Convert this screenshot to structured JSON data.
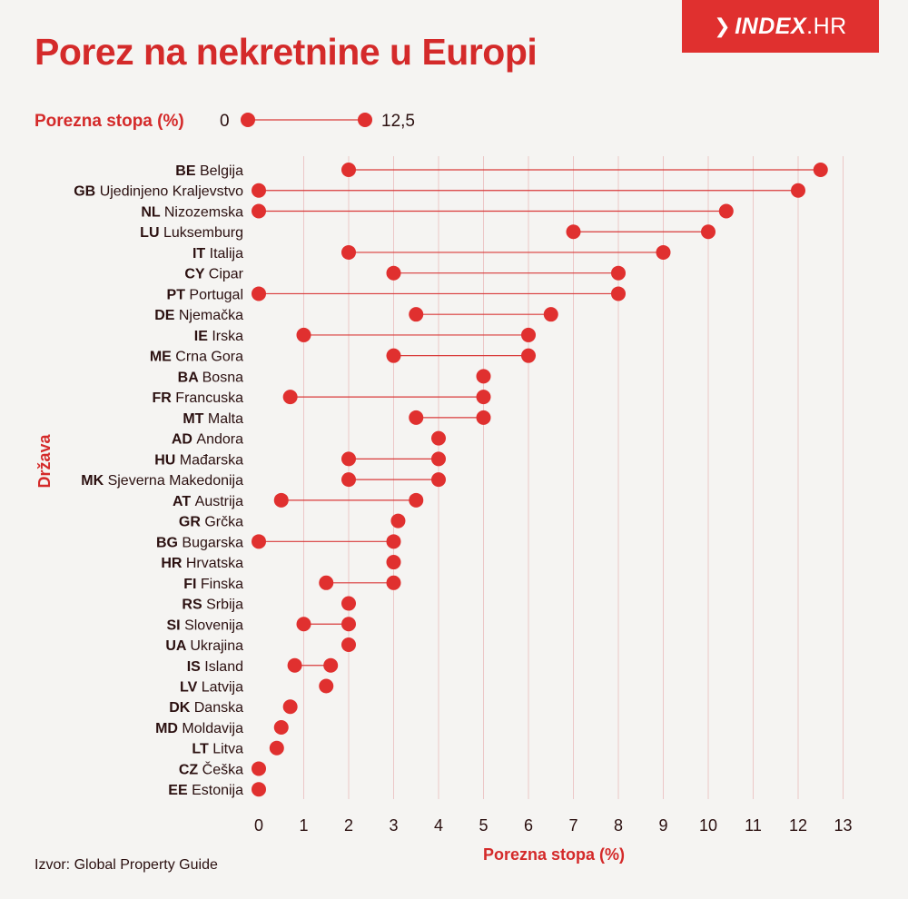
{
  "header": {
    "title": "Porez na nekretnine u Europi",
    "logo": {
      "brand": "INDEX",
      "tld": ".HR"
    }
  },
  "source": "Izvor: Global Property Guide",
  "colors": {
    "accent": "#d42a2a",
    "dot": "#e0302f",
    "line": "#d93a3a",
    "grid": "#ecc7c7",
    "text": "#2b1010"
  },
  "chart_data": {
    "type": "dumbbell",
    "title": "Porez na nekretnine u Europi",
    "xlabel": "Porezna stopa (%)",
    "ylabel": "Država",
    "xlim": [
      0,
      13
    ],
    "xticks": [
      0,
      1,
      2,
      3,
      4,
      5,
      6,
      7,
      8,
      9,
      10,
      11,
      12,
      13
    ],
    "grid": "vertical",
    "legend": {
      "label": "Porezna stopa (%)",
      "min_label": "0",
      "max_label": "12,5",
      "position": "top-left"
    },
    "rows": [
      {
        "code": "BE",
        "name": "Belgija",
        "min": 2,
        "max": 12.5
      },
      {
        "code": "GB",
        "name": "Ujedinjeno Kraljevstvo",
        "min": 0,
        "max": 12
      },
      {
        "code": "NL",
        "name": "Nizozemska",
        "min": 0,
        "max": 10.4
      },
      {
        "code": "LU",
        "name": "Luksemburg",
        "min": 7,
        "max": 10
      },
      {
        "code": "IT",
        "name": "Italija",
        "min": 2,
        "max": 9
      },
      {
        "code": "CY",
        "name": "Cipar",
        "min": 3,
        "max": 8
      },
      {
        "code": "PT",
        "name": "Portugal",
        "min": 0,
        "max": 8
      },
      {
        "code": "DE",
        "name": "Njemačka",
        "min": 3.5,
        "max": 6.5
      },
      {
        "code": "IE",
        "name": "Irska",
        "min": 1,
        "max": 6
      },
      {
        "code": "ME",
        "name": "Crna Gora",
        "min": 3,
        "max": 6
      },
      {
        "code": "BA",
        "name": "Bosna",
        "min": 5,
        "max": 5
      },
      {
        "code": "FR",
        "name": "Francuska",
        "min": 0.7,
        "max": 5
      },
      {
        "code": "MT",
        "name": "Malta",
        "min": 3.5,
        "max": 5
      },
      {
        "code": "AD",
        "name": "Andora",
        "min": 4,
        "max": 4
      },
      {
        "code": "HU",
        "name": "Mađarska",
        "min": 2,
        "max": 4
      },
      {
        "code": "MK",
        "name": "Sjeverna Makedonija",
        "min": 2,
        "max": 4
      },
      {
        "code": "AT",
        "name": "Austrija",
        "min": 0.5,
        "max": 3.5
      },
      {
        "code": "GR",
        "name": "Grčka",
        "min": 3.1,
        "max": 3.1
      },
      {
        "code": "BG",
        "name": "Bugarska",
        "min": 0,
        "max": 3
      },
      {
        "code": "HR",
        "name": "Hrvatska",
        "min": 3,
        "max": 3
      },
      {
        "code": "FI",
        "name": "Finska",
        "min": 1.5,
        "max": 3
      },
      {
        "code": "RS",
        "name": "Srbija",
        "min": 2,
        "max": 2
      },
      {
        "code": "SI",
        "name": "Slovenija",
        "min": 1,
        "max": 2
      },
      {
        "code": "UA",
        "name": "Ukrajina",
        "min": 2,
        "max": 2
      },
      {
        "code": "IS",
        "name": "Island",
        "min": 0.8,
        "max": 1.6
      },
      {
        "code": "LV",
        "name": "Latvija",
        "min": 1.5,
        "max": 1.5
      },
      {
        "code": "DK",
        "name": "Danska",
        "min": 0.7,
        "max": 0.7
      },
      {
        "code": "MD",
        "name": "Moldavija",
        "min": 0.5,
        "max": 0.5
      },
      {
        "code": "LT",
        "name": "Litva",
        "min": 0.4,
        "max": 0.4
      },
      {
        "code": "CZ",
        "name": "Češka",
        "min": 0,
        "max": 0
      },
      {
        "code": "EE",
        "name": "Estonija",
        "min": 0,
        "max": 0
      }
    ]
  }
}
